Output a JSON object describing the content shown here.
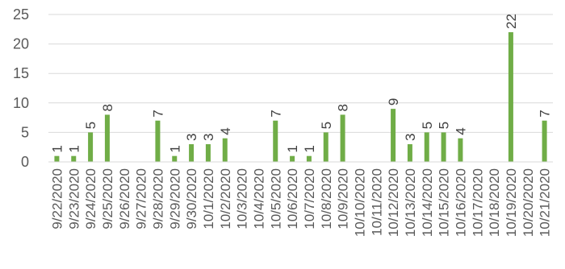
{
  "chart_data": {
    "type": "bar",
    "categories": [
      "9/22/2020",
      "9/23/2020",
      "9/24/2020",
      "9/25/2020",
      "9/26/2020",
      "9/27/2020",
      "9/28/2020",
      "9/29/2020",
      "9/30/2020",
      "10/1/2020",
      "10/2/2020",
      "10/3/2020",
      "10/4/2020",
      "10/5/2020",
      "10/6/2020",
      "10/7/2020",
      "10/8/2020",
      "10/9/2020",
      "10/10/2020",
      "10/11/2020",
      "10/12/2020",
      "10/13/2020",
      "10/14/2020",
      "10/15/2020",
      "10/16/2020",
      "10/17/2020",
      "10/18/2020",
      "10/19/2020",
      "10/20/2020",
      "10/21/2020"
    ],
    "values": [
      1,
      1,
      5,
      8,
      0,
      0,
      7,
      1,
      3,
      3,
      4,
      0,
      0,
      7,
      1,
      1,
      5,
      8,
      0,
      0,
      9,
      3,
      5,
      5,
      4,
      0,
      0,
      22,
      0,
      7
    ],
    "yticks": [
      0,
      5,
      10,
      15,
      20,
      25
    ],
    "ylim": [
      0,
      25
    ],
    "grid": true,
    "legend": "none",
    "bar_color": "#70ad47",
    "grid_color": "#d9d9d9",
    "title": "",
    "xlabel": "",
    "ylabel": ""
  }
}
